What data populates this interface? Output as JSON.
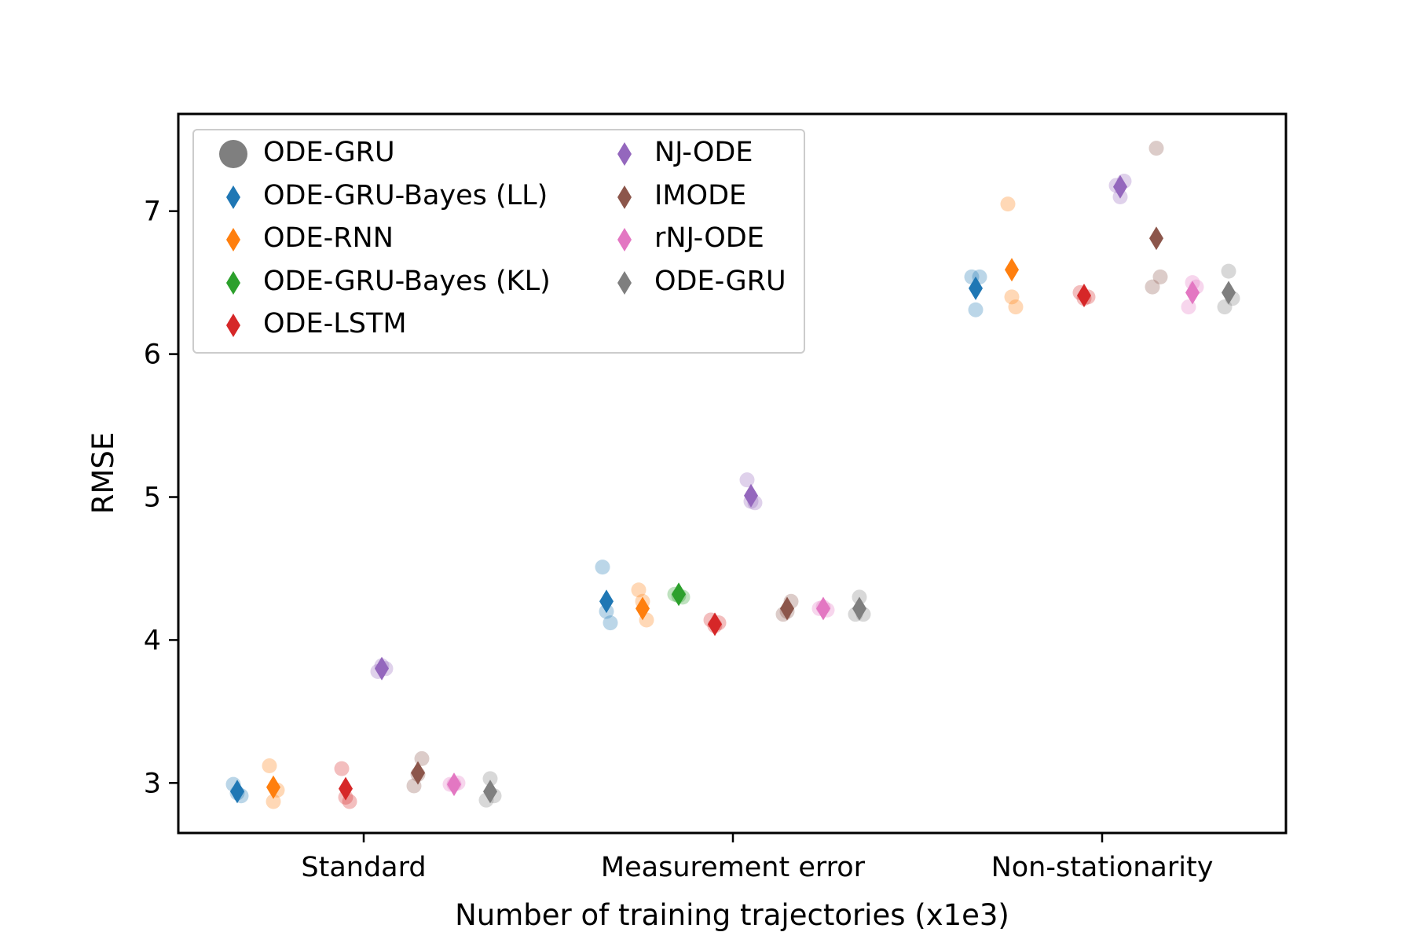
{
  "chart_data": {
    "type": "scatter",
    "xlabel": "Number of training trajectories (x1e3)",
    "ylabel": "RMSE",
    "categories": [
      "Standard",
      "Measurement error",
      "Non-stationarity"
    ],
    "ylim": [
      2.65,
      7.68
    ],
    "yticks": [
      3,
      4,
      5,
      6,
      7
    ],
    "grid": false,
    "legend_placement": "top-left",
    "legend": {
      "columns": 2,
      "entries": [
        {
          "label": "ODE-GRU",
          "marker": "circle",
          "color": "#7f7f7f"
        },
        {
          "label": "ODE-GRU-Bayes (LL)",
          "marker": "diamond",
          "color": "#1f77b4"
        },
        {
          "label": "ODE-RNN",
          "marker": "diamond",
          "color": "#ff7f0e"
        },
        {
          "label": "ODE-GRU-Bayes (KL)",
          "marker": "diamond",
          "color": "#2ca02c"
        },
        {
          "label": "ODE-LSTM",
          "marker": "diamond",
          "color": "#d62728"
        },
        {
          "label": "NJ-ODE",
          "marker": "diamond",
          "color": "#9467bd"
        },
        {
          "label": "IMODE",
          "marker": "diamond",
          "color": "#8c564b"
        },
        {
          "label": "rNJ-ODE",
          "marker": "diamond",
          "color": "#e377c2"
        },
        {
          "label": "ODE-GRU",
          "marker": "diamond",
          "color": "#7f7f7f"
        }
      ]
    },
    "series": [
      {
        "name": "ODE-GRU-Bayes (LL)",
        "color": "#1f77b4",
        "mean": [
          2.94,
          4.27,
          6.46
        ],
        "runs": [
          [
            2.99,
            2.91,
            2.93
          ],
          [
            4.51,
            4.12,
            4.2
          ],
          [
            6.54,
            6.54,
            6.31
          ]
        ]
      },
      {
        "name": "ODE-RNN",
        "color": "#ff7f0e",
        "mean": [
          2.97,
          4.22,
          6.59
        ],
        "runs": [
          [
            3.12,
            2.95,
            2.87
          ],
          [
            4.35,
            4.14,
            4.27
          ],
          [
            7.05,
            6.33,
            6.4
          ]
        ]
      },
      {
        "name": "ODE-GRU-Bayes (KL)",
        "color": "#2ca02c",
        "mean": [
          null,
          4.32,
          null
        ],
        "runs": [
          [],
          [
            4.32,
            4.3,
            4.31
          ],
          []
        ]
      },
      {
        "name": "ODE-LSTM",
        "color": "#d62728",
        "mean": [
          2.96,
          4.11,
          6.41
        ],
        "runs": [
          [
            3.1,
            2.87,
            2.9
          ],
          [
            4.14,
            4.12,
            4.1
          ],
          [
            6.43,
            6.4,
            6.39
          ]
        ]
      },
      {
        "name": "NJ-ODE",
        "color": "#9467bd",
        "mean": [
          3.8,
          5.01,
          7.17
        ],
        "runs": [
          [
            3.78,
            3.8,
            3.82
          ],
          [
            5.12,
            4.96,
            4.97
          ],
          [
            7.18,
            7.21,
            7.1
          ]
        ]
      },
      {
        "name": "IMODE",
        "color": "#8c564b",
        "mean": [
          3.07,
          4.22,
          6.81
        ],
        "runs": [
          [
            2.98,
            3.17,
            3.06
          ],
          [
            4.18,
            4.27,
            4.2
          ],
          [
            6.47,
            6.54,
            7.44
          ]
        ]
      },
      {
        "name": "rNJ-ODE",
        "color": "#e377c2",
        "mean": [
          2.99,
          4.22,
          6.43
        ],
        "runs": [
          [
            2.99,
            3.0,
            2.99
          ],
          [
            4.22,
            4.21,
            4.23
          ],
          [
            6.33,
            6.47,
            6.5
          ]
        ]
      },
      {
        "name": "ODE-GRU",
        "color": "#7f7f7f",
        "mean": [
          2.94,
          4.22,
          6.43
        ],
        "runs": [
          [
            2.88,
            2.91,
            3.03
          ],
          [
            4.18,
            4.18,
            4.3
          ],
          [
            6.33,
            6.39,
            6.58
          ]
        ]
      }
    ]
  }
}
